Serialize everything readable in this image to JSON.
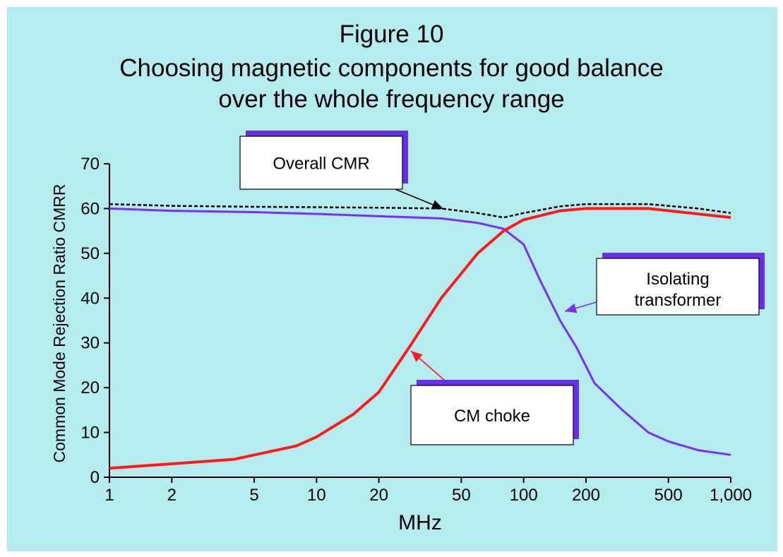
{
  "title": {
    "line1": "Figure 10",
    "line2": "Choosing magnetic components for good balance",
    "line3": "over the whole frequency range"
  },
  "colors": {
    "background": "#b5ecef",
    "overall": "#000000",
    "transformer": "#7b2ff6",
    "choke": "#ff1a1a",
    "callout_shadow": "#6a2ee8"
  },
  "chart_data": {
    "type": "line",
    "xlabel": "MHz",
    "ylabel": "Common Mode Rejection Ratio CMRR",
    "xscale": "log",
    "xlim": [
      1,
      1000
    ],
    "ylim": [
      0,
      70
    ],
    "x_ticks": [
      1,
      2,
      5,
      10,
      20,
      50,
      100,
      200,
      500,
      1000
    ],
    "x_tick_labels": [
      "1",
      "2",
      "5",
      "10",
      "20",
      "50",
      "100",
      "200",
      "500",
      "1,000"
    ],
    "y_ticks": [
      0,
      10,
      20,
      30,
      40,
      50,
      60,
      70
    ],
    "y_tick_labels": [
      "0",
      "10",
      "20",
      "30",
      "40",
      "50",
      "60",
      "70"
    ],
    "grid": false,
    "series": [
      {
        "name": "Overall CMR",
        "style": "dashed",
        "x": [
          1,
          2,
          5,
          10,
          20,
          40,
          60,
          80,
          100,
          150,
          200,
          300,
          400,
          500,
          700,
          1000
        ],
        "y": [
          61,
          60.6,
          60.4,
          60.3,
          60.2,
          60,
          59,
          58,
          59,
          60.5,
          61,
          61,
          61,
          60.6,
          60,
          59
        ]
      },
      {
        "name": "Isolating transformer",
        "style": "solid",
        "x": [
          1,
          2,
          5,
          10,
          20,
          40,
          60,
          80,
          100,
          120,
          150,
          180,
          220,
          300,
          400,
          500,
          700,
          1000
        ],
        "y": [
          60,
          59.5,
          59.2,
          58.8,
          58.3,
          57.8,
          56.8,
          55.5,
          52,
          44,
          35,
          29,
          21,
          15,
          10,
          8,
          6,
          5
        ]
      },
      {
        "name": "CM choke",
        "style": "solid",
        "x": [
          1,
          2,
          4,
          8,
          10,
          15,
          20,
          28,
          40,
          60,
          80,
          100,
          150,
          200,
          400,
          1000
        ],
        "y": [
          2,
          3,
          4,
          7,
          9,
          14,
          19,
          29,
          40,
          50,
          55,
          57.5,
          59.5,
          60,
          60,
          58
        ]
      }
    ],
    "annotations": [
      {
        "text": "Overall CMR",
        "series": "Overall CMR",
        "x": 40,
        "y": 60
      },
      {
        "text": "Isolating transformer",
        "series": "Isolating transformer",
        "x": 150,
        "y": 37
      },
      {
        "text": "CM choke",
        "series": "CM choke",
        "x": 28,
        "y": 27
      }
    ]
  }
}
